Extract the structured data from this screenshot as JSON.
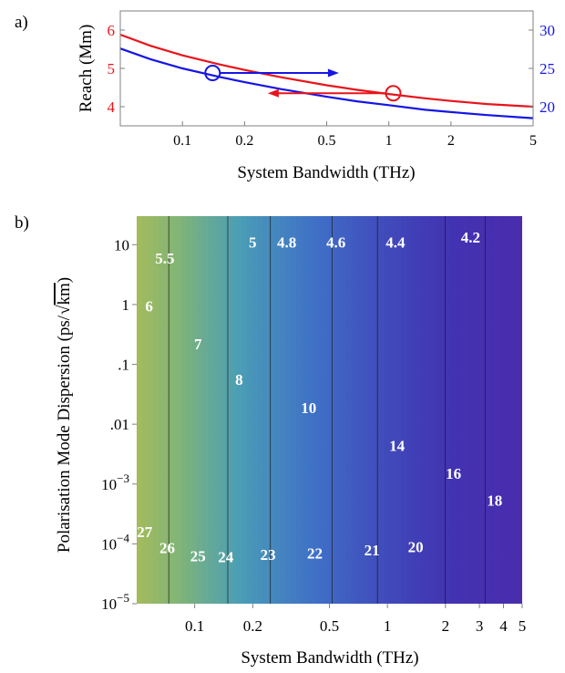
{
  "chart_data": [
    {
      "panel_label": "a)",
      "type": "line",
      "xlabel": "System Bandwidth (THz)",
      "ylabel": "Reach (Mm)",
      "x_scale": "log",
      "xlim": [
        0.05,
        5
      ],
      "ylim": [
        3.5,
        6.5
      ],
      "y2lim": [
        17.5,
        32.5
      ],
      "x_ticks": [
        {
          "v": 0.1,
          "label": "0.1"
        },
        {
          "v": 0.2,
          "label": "0.2"
        },
        {
          "v": 0.5,
          "label": "0.5"
        },
        {
          "v": 1,
          "label": "1"
        },
        {
          "v": 2,
          "label": "2"
        },
        {
          "v": 5,
          "label": "5"
        }
      ],
      "y_ticks": [
        {
          "v": 4,
          "label": "4"
        },
        {
          "v": 5,
          "label": "5"
        },
        {
          "v": 6,
          "label": "6"
        }
      ],
      "y2_ticks": [
        {
          "v": 20,
          "label": "20"
        },
        {
          "v": 25,
          "label": "25"
        },
        {
          "v": 30,
          "label": "30"
        }
      ],
      "colors": {
        "left_axis": "#e8141b",
        "right_axis": "#1515e6"
      },
      "series": [
        {
          "axis": "left",
          "color": "#e8141b",
          "x": [
            0.05,
            0.07,
            0.1,
            0.15,
            0.2,
            0.3,
            0.5,
            0.7,
            1,
            1.5,
            2,
            3,
            5
          ],
          "y": [
            5.88,
            5.59,
            5.34,
            5.11,
            4.96,
            4.77,
            4.56,
            4.44,
            4.33,
            4.22,
            4.15,
            4.07,
            4.0
          ]
        },
        {
          "axis": "right",
          "color": "#1515e6",
          "x": [
            0.05,
            0.07,
            0.1,
            0.15,
            0.2,
            0.3,
            0.5,
            0.7,
            1,
            1.5,
            2,
            3,
            5
          ],
          "y": [
            27.6,
            26.2,
            25.0,
            23.9,
            23.2,
            22.3,
            21.3,
            20.7,
            20.2,
            19.6,
            19.3,
            18.9,
            18.5
          ]
        }
      ],
      "markers": [
        {
          "x": 0.14,
          "y2": 24.4,
          "color": "#1515e6",
          "arrow_to_x": 0.55,
          "arrow_direction": "right"
        },
        {
          "x": 1.05,
          "y": 4.35,
          "color": "#e8141b",
          "arrow_to_x": 0.27,
          "arrow_direction": "left"
        }
      ]
    },
    {
      "panel_label": "b)",
      "type": "heatmap",
      "xlabel": "System Bandwidth (THz)",
      "ylabel": "Polarisation Mode Dispersion (ps/√km)",
      "ylabel_parts": {
        "main": "Polarisation Mode Dispersion (ps/",
        "radical": "km",
        "close": ")"
      },
      "x_scale": "log",
      "y_scale": "log",
      "xlim": [
        0.05,
        5
      ],
      "ylim": [
        1e-05,
        30
      ],
      "x_ticks": [
        {
          "v": 0.1,
          "label": "0.1"
        },
        {
          "v": 0.2,
          "label": "0.2"
        },
        {
          "v": 0.5,
          "label": "0.5"
        },
        {
          "v": 1,
          "label": "1"
        },
        {
          "v": 2,
          "label": "2"
        },
        {
          "v": 3,
          "label": "3"
        },
        {
          "v": 4,
          "label": "4"
        },
        {
          "v": 5,
          "label": "5"
        }
      ],
      "y_ticks": [
        {
          "v": 10,
          "label": "10"
        },
        {
          "v": 1,
          "label": "1"
        },
        {
          "v": 0.1,
          "label": ".1"
        },
        {
          "v": 0.01,
          "label": ".01"
        },
        {
          "v": 0.001,
          "base": "10",
          "exp": "−3"
        },
        {
          "v": 0.0001,
          "base": "10",
          "exp": "−4"
        },
        {
          "v": 1e-05,
          "base": "10",
          "exp": "−5"
        }
      ],
      "colormap": [
        "#5a1fa0",
        "#4233b2",
        "#3f6ec7",
        "#4a9db6",
        "#7fb479",
        "#a9bd57",
        "#c9b843",
        "#e4a232",
        "#de7026",
        "#c84a1c"
      ],
      "color_range": [
        4,
        28
      ],
      "contour_levels": [
        4.2,
        4.4,
        4.6,
        4.8,
        5,
        5.5,
        6,
        7,
        8,
        10,
        12,
        14,
        16,
        18,
        20,
        21,
        22,
        23,
        24,
        25,
        26,
        27
      ],
      "contour_labels": [
        {
          "label": "4.2",
          "x": 2.7,
          "y": 13.5
        },
        {
          "label": "4.4",
          "x": 1.1,
          "y": 11
        },
        {
          "label": "4.6",
          "x": 0.54,
          "y": 11
        },
        {
          "label": "4.8",
          "x": 0.3,
          "y": 11
        },
        {
          "label": "5",
          "x": 0.2,
          "y": 11
        },
        {
          "label": "5.5",
          "x": 0.07,
          "y": 6
        },
        {
          "label": "6",
          "x": 0.058,
          "y": 0.95
        },
        {
          "label": "7",
          "x": 0.104,
          "y": 0.22
        },
        {
          "label": "8",
          "x": 0.17,
          "y": 0.056
        },
        {
          "label": "10",
          "x": 0.39,
          "y": 0.019
        },
        {
          "label": "14",
          "x": 1.12,
          "y": 0.0044
        },
        {
          "label": "16",
          "x": 2.2,
          "y": 0.0015
        },
        {
          "label": "18",
          "x": 3.6,
          "y": 0.00054
        },
        {
          "label": "20",
          "x": 1.4,
          "y": 9e-05
        },
        {
          "label": "21",
          "x": 0.83,
          "y": 7.9e-05
        },
        {
          "label": "22",
          "x": 0.42,
          "y": 7e-05
        },
        {
          "label": "23",
          "x": 0.24,
          "y": 6.7e-05
        },
        {
          "label": "24",
          "x": 0.145,
          "y": 6.1e-05
        },
        {
          "label": "25",
          "x": 0.104,
          "y": 6.3e-05
        },
        {
          "label": "26",
          "x": 0.072,
          "y": 8.6e-05
        },
        {
          "label": "27",
          "x": 0.055,
          "y": 0.00016
        }
      ]
    }
  ]
}
